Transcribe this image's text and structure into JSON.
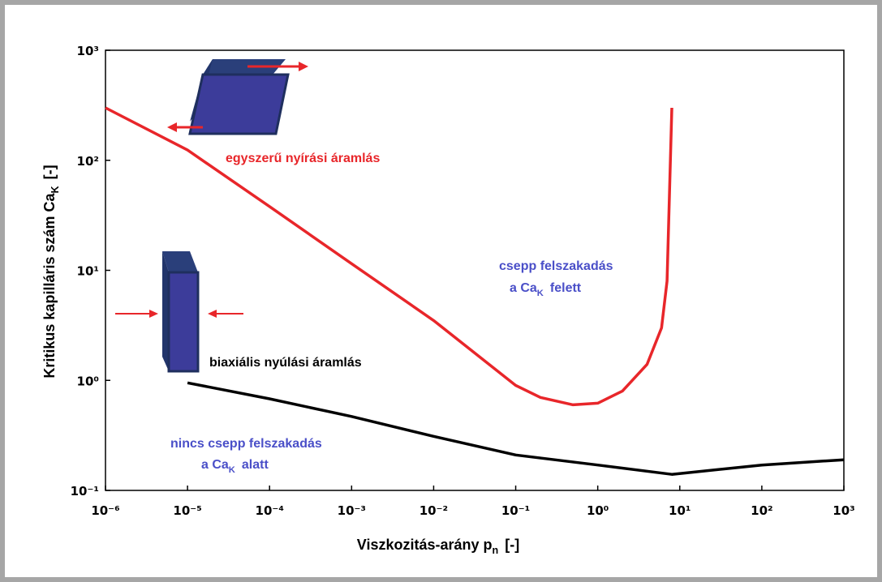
{
  "chart_data": {
    "type": "line",
    "xlabel": {
      "text": "Viszkozitás-arány p",
      "sub": "n",
      "after": "[-]"
    },
    "ylabel": {
      "text": "Kritikus kapilláris szám Ca",
      "sub": "K",
      "after": "[-]"
    },
    "log_x": true,
    "log_y": true,
    "xlim": [
      1e-06,
      1000
    ],
    "ylim": [
      0.1,
      1000
    ],
    "xticks": [
      {
        "value": 1e-06,
        "label": "10⁻⁶"
      },
      {
        "value": 1e-05,
        "label": "10⁻⁵"
      },
      {
        "value": 0.0001,
        "label": "10⁻⁴"
      },
      {
        "value": 0.001,
        "label": "10⁻³"
      },
      {
        "value": 0.01,
        "label": "10⁻²"
      },
      {
        "value": 0.1,
        "label": "10⁻¹"
      },
      {
        "value": 1,
        "label": "10⁰"
      },
      {
        "value": 10,
        "label": "10¹"
      },
      {
        "value": 100,
        "label": "10²"
      },
      {
        "value": 1000,
        "label": "10³"
      }
    ],
    "yticks": [
      {
        "value": 0.1,
        "label": "10⁻¹"
      },
      {
        "value": 1,
        "label": "10⁰"
      },
      {
        "value": 10,
        "label": "10¹"
      },
      {
        "value": 100,
        "label": "10²"
      },
      {
        "value": 1000,
        "label": "10³"
      }
    ],
    "series": [
      {
        "color": "#e8262a",
        "x": [
          1e-06,
          1e-05,
          0.0001,
          0.001,
          0.01,
          0.1,
          0.2,
          0.5,
          1,
          2,
          4,
          6,
          7,
          8
        ],
        "values": [
          300,
          124,
          38,
          11.5,
          3.5,
          0.9,
          0.7,
          0.6,
          0.62,
          0.8,
          1.4,
          3,
          8,
          300
        ]
      },
      {
        "color": "#000000",
        "x": [
          1e-05,
          0.0001,
          0.001,
          0.01,
          0.1,
          1,
          8,
          100,
          1000
        ],
        "values": [
          0.95,
          0.68,
          0.47,
          0.31,
          0.21,
          0.17,
          0.14,
          0.17,
          0.19
        ]
      }
    ],
    "annotations": [
      {
        "color": "#e8262a",
        "lines": [
          {
            "text": "egyszerű nyírási áramlás"
          }
        ]
      },
      {
        "color": "#4a4fc8",
        "lines": [
          {
            "text": "csepp felszakadás"
          },
          {
            "text": "a Ca",
            "sub": "K",
            "after": "felett"
          }
        ]
      },
      {
        "color": "#000000",
        "lines": [
          {
            "text": "biaxiális nyúlási áramlás"
          }
        ]
      },
      {
        "color": "#4a4fc8",
        "lines": [
          {
            "text": "nincs csepp felszakadás"
          },
          {
            "text": "a Ca",
            "sub": "K",
            "after": "alatt"
          }
        ]
      }
    ]
  }
}
